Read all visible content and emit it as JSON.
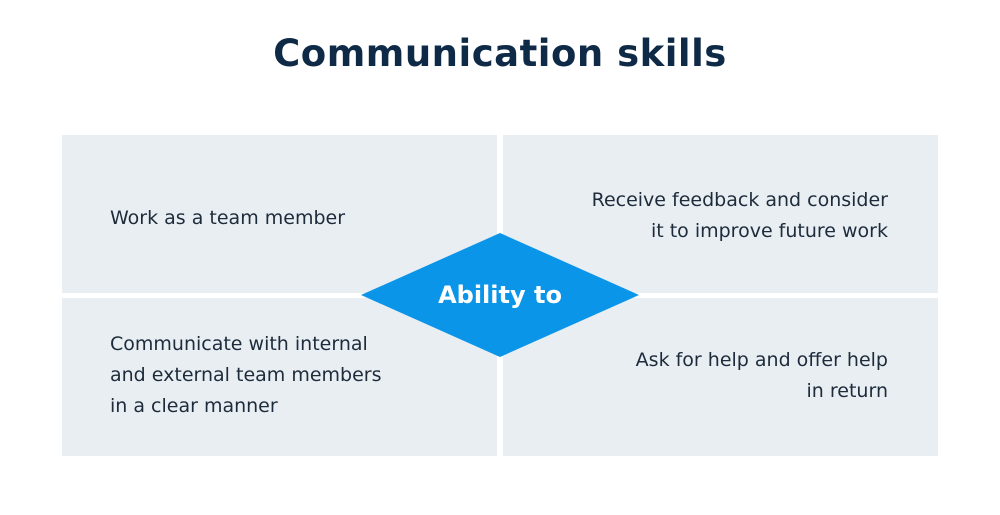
{
  "title": "Communication skills",
  "center_label": "Ability to",
  "quadrants": [
    {
      "text": "Work as a team member"
    },
    {
      "text": "Receive feedback and consider\nit to improve future work"
    },
    {
      "text": "Communicate with internal\nand external team members\nin a clear manner"
    },
    {
      "text": "Ask for help and offer help\nin return"
    }
  ],
  "colors": {
    "title": "#0f2a47",
    "quadrant_bg": "#e9eef3",
    "diamond": "#0a95e9"
  }
}
